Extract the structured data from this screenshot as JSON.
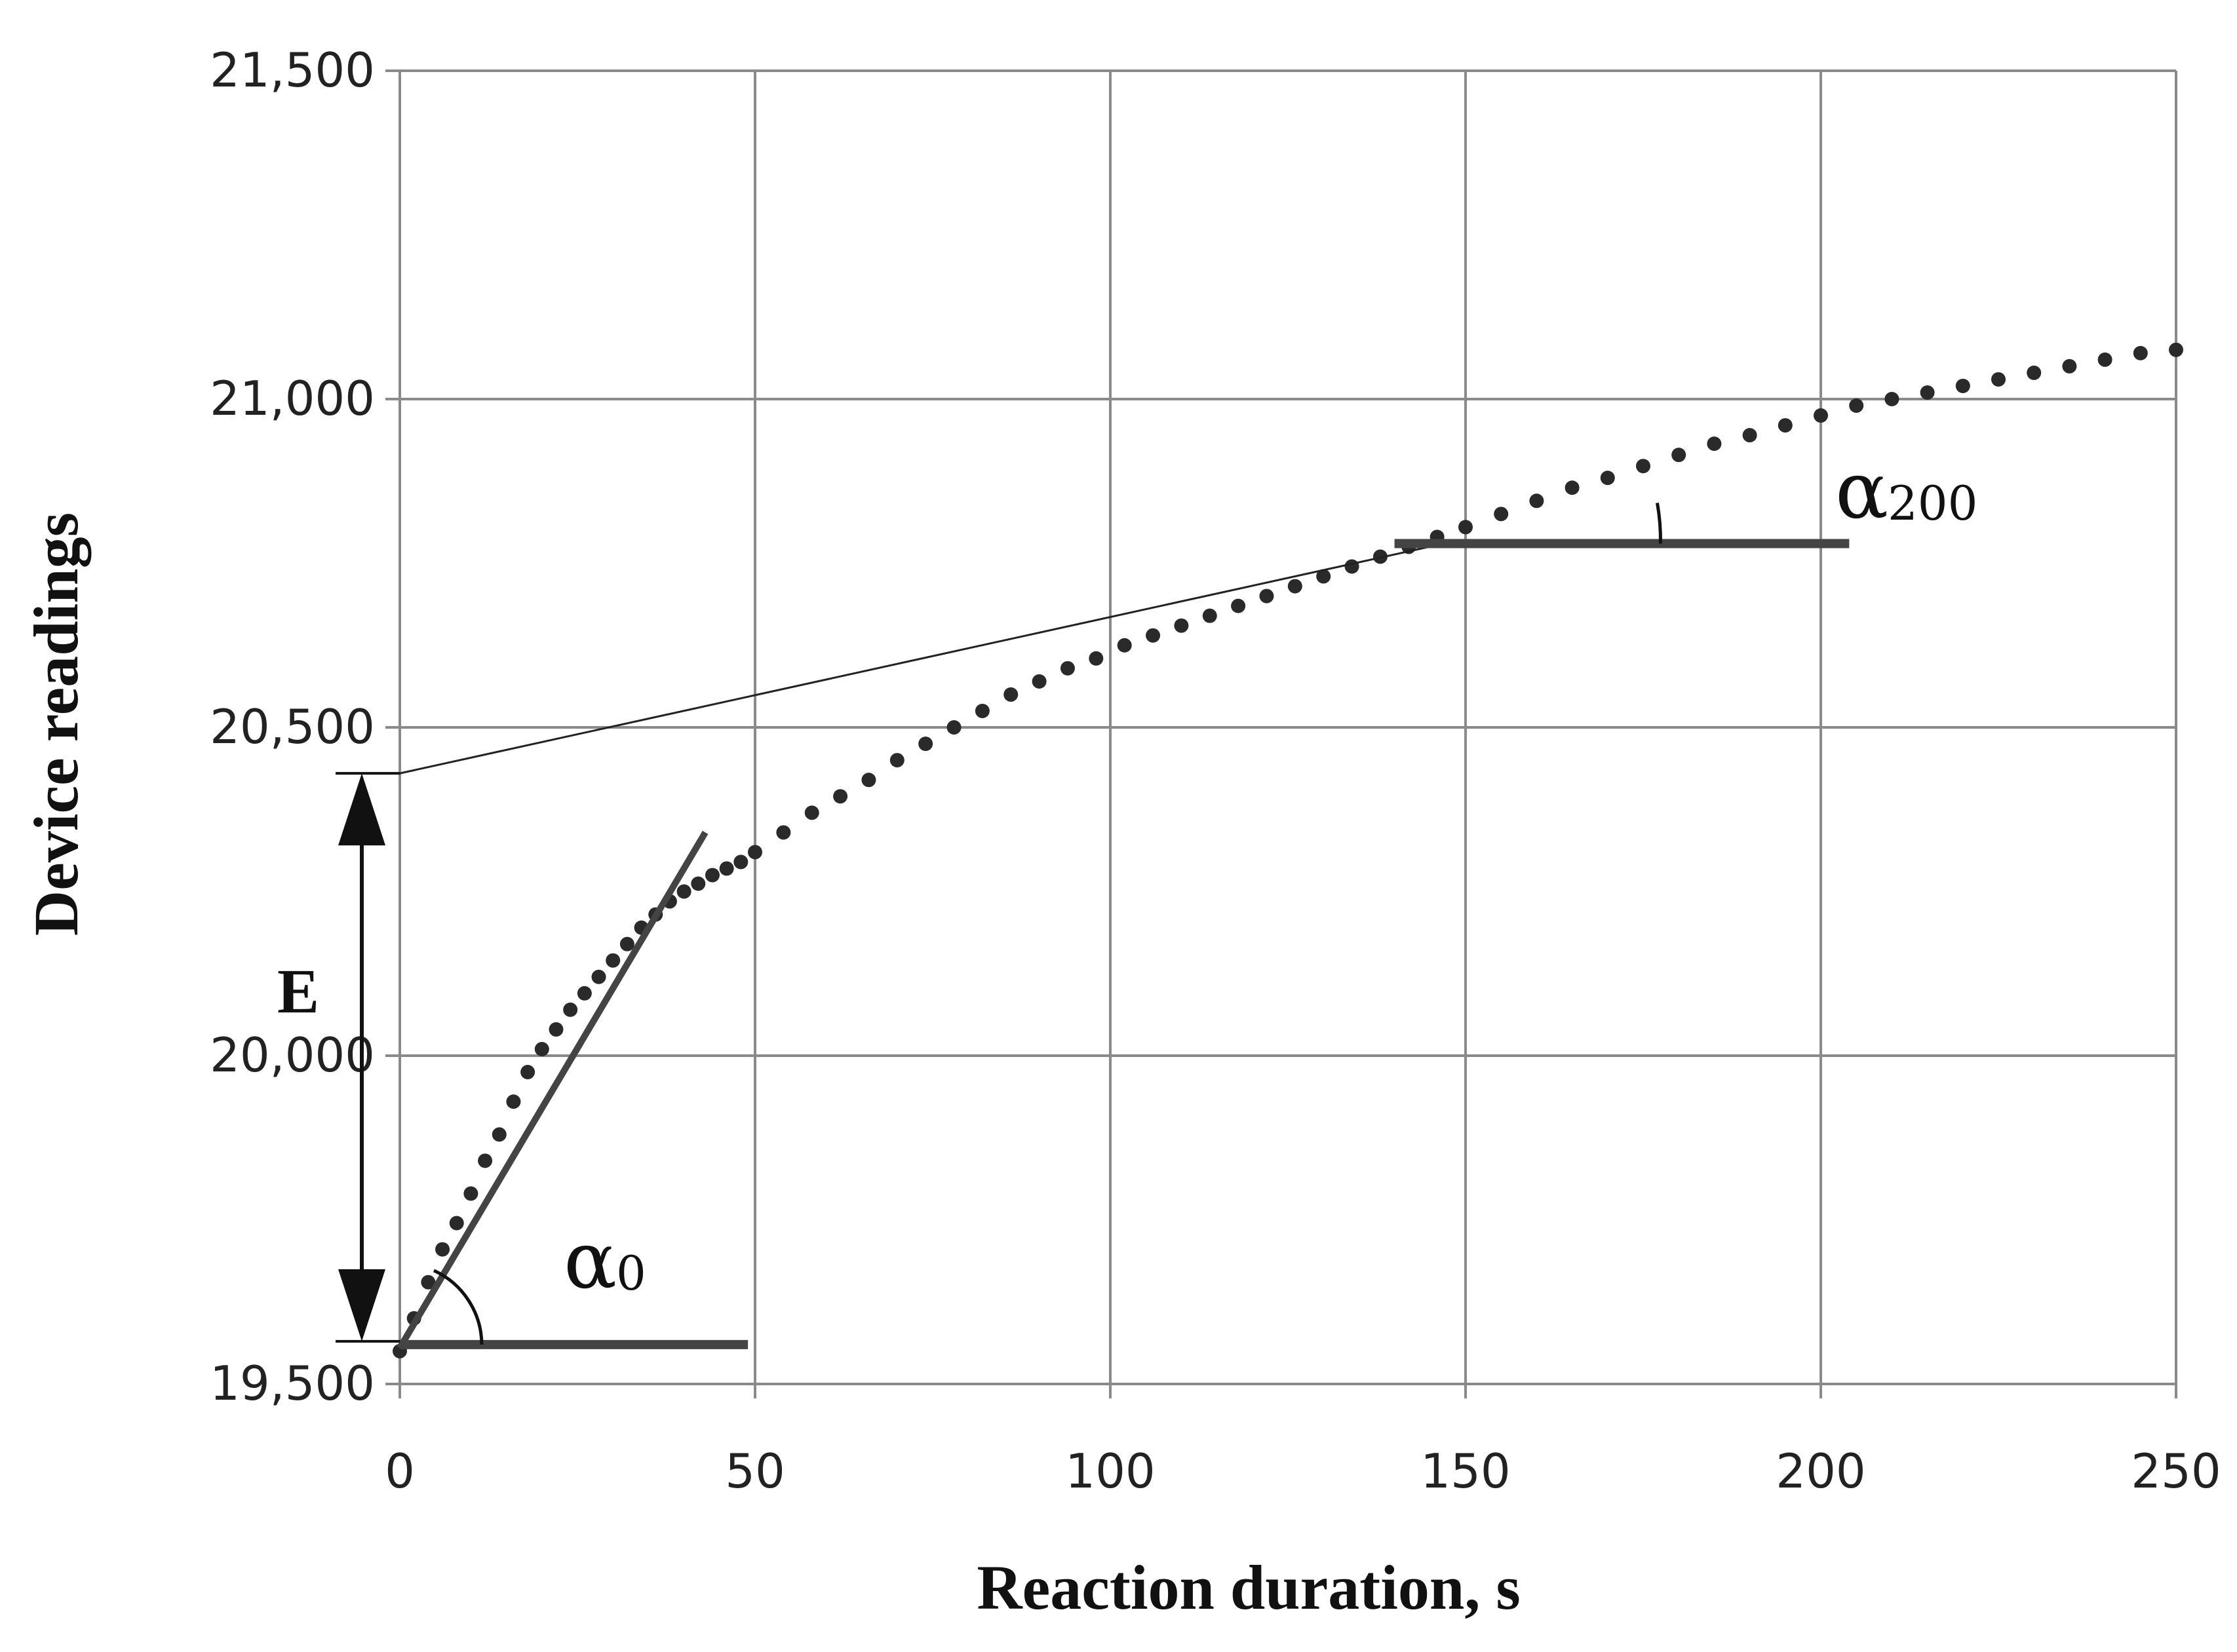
{
  "chart_data": {
    "type": "scatter",
    "title": "",
    "xlabel": "Reaction duration, s",
    "ylabel": "Device readings",
    "xlim": [
      0,
      250
    ],
    "ylim": [
      19500,
      21500
    ],
    "xticks": [
      0,
      50,
      100,
      150,
      200,
      250
    ],
    "xtick_labels": [
      "0",
      "50",
      "100",
      "150",
      "200",
      "250"
    ],
    "yticks": [
      19500,
      20000,
      20500,
      21000,
      21500
    ],
    "ytick_labels": [
      "19,500",
      "20,000",
      "20,500",
      "21,000",
      "21,500"
    ],
    "grid": true,
    "legend": "none",
    "marker_color": "#2a2a2a",
    "line_color": "#444444",
    "series": [
      {
        "x": [
          0,
          2,
          4,
          6,
          8,
          10,
          12,
          14,
          16,
          18,
          20,
          22,
          24,
          26,
          28,
          30,
          32,
          34,
          36,
          38,
          40,
          42,
          44,
          46,
          48,
          50,
          54,
          58,
          62,
          66,
          70,
          74,
          78,
          82,
          86,
          90,
          94,
          98,
          102,
          106,
          110,
          114,
          118,
          122,
          126,
          130,
          134,
          138,
          142,
          146,
          150,
          155,
          160,
          165,
          170,
          175,
          180,
          185,
          190,
          195,
          200,
          205,
          210,
          215,
          220,
          225,
          230,
          235,
          240,
          245,
          250
        ],
        "y": [
          19550,
          19600,
          19655,
          19705,
          19745,
          19790,
          19840,
          19880,
          19930,
          19975,
          20010,
          20040,
          20070,
          20095,
          20120,
          20145,
          20170,
          20195,
          20215,
          20235,
          20250,
          20262,
          20275,
          20285,
          20295,
          20310,
          20340,
          20370,
          20395,
          20420,
          20450,
          20475,
          20500,
          20525,
          20550,
          20570,
          20590,
          20605,
          20625,
          20640,
          20655,
          20670,
          20685,
          20700,
          20715,
          20730,
          20745,
          20760,
          20775,
          20790,
          20805,
          20825,
          20845,
          20865,
          20880,
          20898,
          20915,
          20932,
          20945,
          20960,
          20975,
          20990,
          21000,
          21010,
          21020,
          21030,
          21040,
          21050,
          21060,
          21070,
          21075
        ]
      }
    ],
    "annotations": {
      "E_label": "E",
      "alpha0_symbol": "α",
      "alpha0_sub": "0",
      "alpha200_symbol": "α",
      "alpha200_sub": "200",
      "E_bottom": 19565,
      "E_top": 20430,
      "tangent0": {
        "x1": 0,
        "y1": 19555,
        "x2": 43,
        "y2": 20340
      },
      "baseline0": {
        "x1": 0,
        "y1": 19560,
        "x2": 49,
        "y2": 19560
      },
      "tangent200": {
        "x1": 0,
        "y1": 20430,
        "x2": 147,
        "y2": 20780
      },
      "baseline200": {
        "x1": 140,
        "y1": 20780,
        "x2": 204,
        "y2": 20780
      }
    }
  }
}
